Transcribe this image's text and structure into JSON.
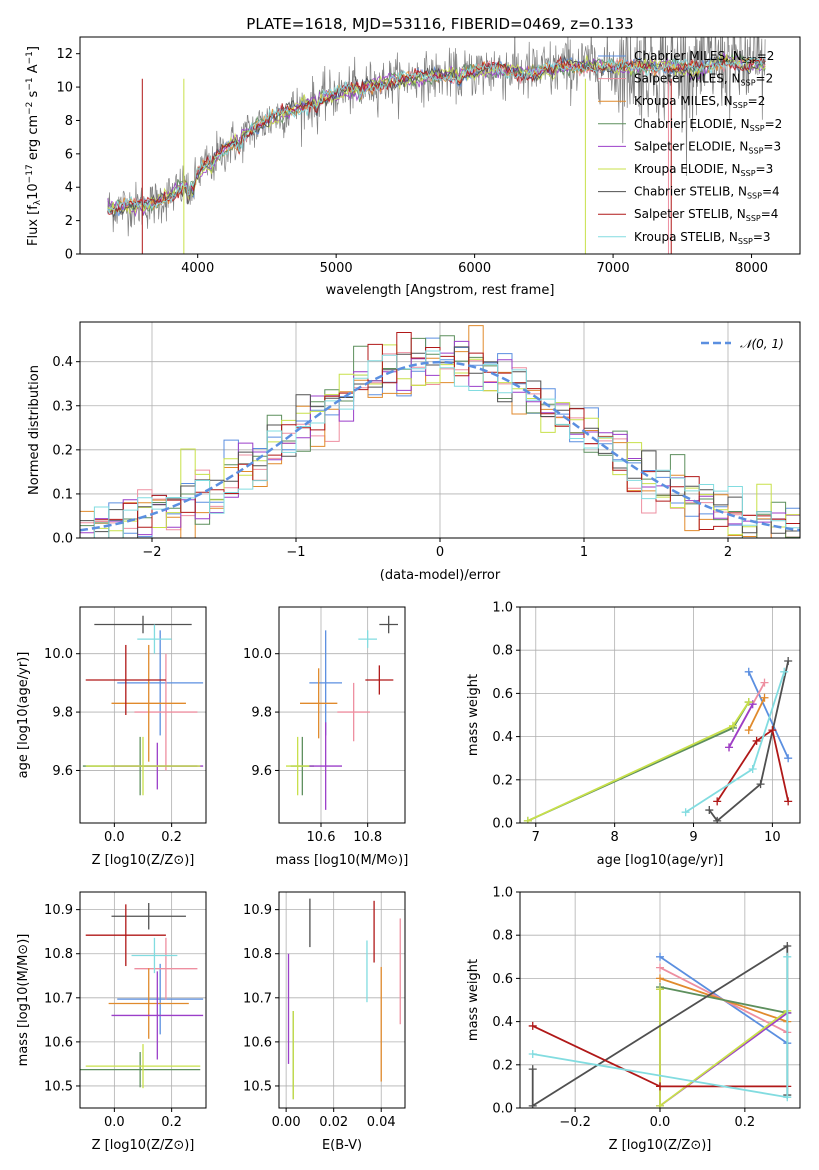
{
  "title": "PLATE=1618, MJD=53116, FIBERID=0469, z=0.133",
  "colors": {
    "chabrier_miles": "#5b8fe0",
    "salpeter_miles": "#ee8fa0",
    "kroupa_miles": "#e08a2c",
    "chabrier_elodie": "#5d8f5d",
    "salpeter_elodie": "#9b3fc9",
    "kroupa_elodie": "#c8e04a",
    "chabrier_stelib": "#505050",
    "salpeter_stelib": "#b01818",
    "kroupa_stelib": "#82dce0",
    "data": "#808080",
    "normal": "#5b8fe0"
  },
  "chart_data": [
    {
      "type": "line",
      "xlabel": "wavelength [Angstrom, rest frame]",
      "ylabel": "Flux [f_λ10^-17 erg cm^-2 s^-1 A^-1]",
      "xlim": [
        3150,
        8350
      ],
      "ylim": [
        0,
        13
      ],
      "xticks": [
        4000,
        5000,
        6000,
        7000,
        8000
      ],
      "yticks": [
        0,
        2,
        4,
        6,
        8,
        10,
        12
      ],
      "grid": false,
      "legend_position": "top-right",
      "series": [
        {
          "name": "Chabrier MILES, N_SSP=2",
          "color_key": "chabrier_miles"
        },
        {
          "name": "Salpeter MILES, N_SSP=2",
          "color_key": "salpeter_miles"
        },
        {
          "name": "Kroupa MILES, N_SSP=2",
          "color_key": "kroupa_miles"
        },
        {
          "name": "Chabrier ELODIE, N_SSP=2",
          "color_key": "chabrier_elodie"
        },
        {
          "name": "Salpeter ELODIE, N_SSP=3",
          "color_key": "salpeter_elodie"
        },
        {
          "name": "Kroupa ELODIE, N_SSP=3",
          "color_key": "kroupa_elodie"
        },
        {
          "name": "Chabrier STELIB, N_SSP=4",
          "color_key": "chabrier_stelib"
        },
        {
          "name": "Salpeter STELIB, N_SSP=4",
          "color_key": "salpeter_stelib"
        },
        {
          "name": "Kroupa STELIB, N_SSP=3",
          "color_key": "kroupa_stelib"
        }
      ],
      "continuum": {
        "x": [
          3350,
          3500,
          3650,
          3800,
          3950,
          4100,
          4250,
          4400,
          4600,
          4800,
          5000,
          5200,
          5400,
          5600,
          5800,
          6000,
          6200,
          6400,
          6600,
          6800,
          7000,
          7200,
          7400,
          7600,
          7800,
          8000,
          8100
        ],
        "y": [
          2.7,
          2.9,
          2.9,
          3.5,
          4.4,
          5.6,
          6.6,
          7.5,
          8.4,
          9.0,
          9.6,
          10.0,
          10.4,
          10.6,
          10.7,
          10.9,
          11.1,
          10.8,
          11.2,
          11.3,
          11.2,
          11.2,
          11.3,
          11.0,
          11.6,
          11.3,
          11.4
        ]
      }
    },
    {
      "type": "area",
      "xlabel": "(data-model)/error",
      "ylabel": "Normed distribution",
      "xlim": [
        -2.5,
        2.5
      ],
      "ylim": [
        0,
        0.49
      ],
      "xticks": [
        -2,
        -1,
        0,
        1,
        2
      ],
      "xtick_labels": [
        "−2",
        "−1",
        "0",
        "1",
        "2"
      ],
      "yticks": [
        0.0,
        0.1,
        0.2,
        0.3,
        0.4
      ],
      "grid": true,
      "legend_position": "top-right",
      "legend": [
        "𝒩(0, 1)"
      ],
      "normal": {
        "mean": 0,
        "sigma": 1
      }
    },
    {
      "type": "scatter",
      "xlabel": "Z [log10(Z/Z⊙)]",
      "ylabel": "age [log10(age/yr)]",
      "xlim": [
        -0.12,
        0.32
      ],
      "ylim": [
        9.42,
        10.16
      ],
      "xticks": [
        0.0,
        0.2
      ],
      "yticks": [
        9.6,
        9.8,
        10.0
      ],
      "grid": true,
      "points": [
        {
          "model": "chabrier_miles",
          "x": 0.16,
          "y": 9.9,
          "xerr": 0.15,
          "yerr": 0.18
        },
        {
          "model": "salpeter_miles",
          "x": 0.18,
          "y": 9.8,
          "xerr": 0.11,
          "yerr": 0.2
        },
        {
          "model": "kroupa_miles",
          "x": 0.12,
          "y": 9.83,
          "xerr": 0.13,
          "yerr": 0.2
        },
        {
          "model": "chabrier_elodie",
          "x": 0.09,
          "y": 9.615,
          "xerr": 0.2,
          "yerr": 0.1
        },
        {
          "model": "salpeter_elodie",
          "x": 0.15,
          "y": 9.615,
          "xerr": 0.16,
          "yerr": 0.08
        },
        {
          "model": "kroupa_elodie",
          "x": 0.1,
          "y": 9.615,
          "xerr": 0.2,
          "yerr": 0.1
        },
        {
          "model": "chabrier_stelib",
          "x": 0.1,
          "y": 10.1,
          "xerr": 0.17,
          "yerr": 0.03
        },
        {
          "model": "salpeter_stelib",
          "x": 0.04,
          "y": 9.91,
          "xerr": 0.14,
          "yerr": 0.12
        },
        {
          "model": "kroupa_stelib",
          "x": 0.14,
          "y": 10.05,
          "xerr": 0.06,
          "yerr": 0.05
        }
      ]
    },
    {
      "type": "scatter",
      "xlabel": "mass [log10(M/M⊙)]",
      "ylabel": "",
      "xlim": [
        10.42,
        10.96
      ],
      "ylim": [
        9.42,
        10.16
      ],
      "xticks": [
        10.6,
        10.8
      ],
      "yticks": [
        9.6,
        9.8,
        10.0
      ],
      "grid": true,
      "points": [
        {
          "model": "chabrier_miles",
          "x": 10.62,
          "y": 9.9,
          "xerr": 0.07,
          "yerr": 0.18
        },
        {
          "model": "salpeter_miles",
          "x": 10.74,
          "y": 9.8,
          "xerr": 0.07,
          "yerr": 0.1
        },
        {
          "model": "kroupa_miles",
          "x": 10.59,
          "y": 9.83,
          "xerr": 0.08,
          "yerr": 0.12
        },
        {
          "model": "chabrier_elodie",
          "x": 10.52,
          "y": 9.615,
          "xerr": 0.05,
          "yerr": 0.1
        },
        {
          "model": "salpeter_elodie",
          "x": 10.62,
          "y": 9.615,
          "xerr": 0.07,
          "yerr": 0.15
        },
        {
          "model": "kroupa_elodie",
          "x": 10.5,
          "y": 9.615,
          "xerr": 0.05,
          "yerr": 0.1
        },
        {
          "model": "chabrier_stelib",
          "x": 10.89,
          "y": 10.1,
          "xerr": 0.04,
          "yerr": 0.03
        },
        {
          "model": "salpeter_stelib",
          "x": 10.85,
          "y": 9.91,
          "xerr": 0.06,
          "yerr": 0.05
        },
        {
          "model": "kroupa_stelib",
          "x": 10.8,
          "y": 10.05,
          "xerr": 0.04,
          "yerr": 0.03
        }
      ]
    },
    {
      "type": "line",
      "xlabel": "age [log10(age/yr)]",
      "ylabel": "mass weight",
      "xlim": [
        6.8,
        10.35
      ],
      "ylim": [
        0,
        1
      ],
      "xticks": [
        7,
        8,
        9,
        10
      ],
      "yticks": [
        0.0,
        0.2,
        0.4,
        0.6,
        0.8,
        1.0
      ],
      "grid": true,
      "series": [
        {
          "model": "chabrier_miles",
          "x": [
            9.7,
            10.2
          ],
          "y": [
            0.7,
            0.3
          ]
        },
        {
          "model": "salpeter_miles",
          "x": [
            9.45,
            9.9
          ],
          "y": [
            0.35,
            0.65
          ]
        },
        {
          "model": "kroupa_miles",
          "x": [
            9.7,
            9.9
          ],
          "y": [
            0.43,
            0.58
          ]
        },
        {
          "model": "chabrier_elodie",
          "x": [
            6.9,
            9.5,
            9.7
          ],
          "y": [
            0.01,
            0.44,
            0.56
          ]
        },
        {
          "model": "salpeter_elodie",
          "x": [
            9.45,
            9.75
          ],
          "y": [
            0.35,
            0.55
          ]
        },
        {
          "model": "kroupa_elodie",
          "x": [
            6.9,
            9.5,
            9.7
          ],
          "y": [
            0.01,
            0.45,
            0.56
          ]
        },
        {
          "model": "chabrier_stelib",
          "x": [
            9.2,
            9.3,
            9.85,
            10.2
          ],
          "y": [
            0.06,
            0.01,
            0.18,
            0.75
          ]
        },
        {
          "model": "salpeter_stelib",
          "x": [
            9.3,
            9.8,
            10.0,
            10.2
          ],
          "y": [
            0.1,
            0.38,
            0.43,
            0.1
          ]
        },
        {
          "model": "kroupa_stelib",
          "x": [
            8.9,
            9.75,
            10.15
          ],
          "y": [
            0.05,
            0.25,
            0.7
          ]
        }
      ]
    },
    {
      "type": "scatter",
      "xlabel": "Z [log10(Z/Z⊙)]",
      "ylabel": "mass [log10(M/M⊙)]",
      "xlim": [
        -0.12,
        0.32
      ],
      "ylim": [
        10.45,
        10.94
      ],
      "xticks": [
        0.0,
        0.2
      ],
      "yticks": [
        10.5,
        10.6,
        10.7,
        10.8,
        10.9
      ],
      "grid": true,
      "points": [
        {
          "model": "chabrier_miles",
          "x": 0.16,
          "y": 10.697,
          "xerr": 0.15,
          "yerr": 0.08
        },
        {
          "model": "salpeter_miles",
          "x": 0.18,
          "y": 10.766,
          "xerr": 0.11,
          "yerr": 0.07
        },
        {
          "model": "kroupa_miles",
          "x": 0.12,
          "y": 10.687,
          "xerr": 0.14,
          "yerr": 0.08
        },
        {
          "model": "chabrier_elodie",
          "x": 0.09,
          "y": 10.537,
          "xerr": 0.21,
          "yerr": 0.04
        },
        {
          "model": "salpeter_elodie",
          "x": 0.15,
          "y": 10.66,
          "xerr": 0.16,
          "yerr": 0.1
        },
        {
          "model": "kroupa_elodie",
          "x": 0.1,
          "y": 10.545,
          "xerr": 0.2,
          "yerr": 0.05
        },
        {
          "model": "chabrier_stelib",
          "x": 0.12,
          "y": 10.885,
          "xerr": 0.13,
          "yerr": 0.03
        },
        {
          "model": "salpeter_stelib",
          "x": 0.04,
          "y": 10.842,
          "xerr": 0.14,
          "yerr": 0.07
        },
        {
          "model": "kroupa_stelib",
          "x": 0.14,
          "y": 10.796,
          "xerr": 0.08,
          "yerr": 0.04
        }
      ]
    },
    {
      "type": "scatter",
      "xlabel": "E(B-V)",
      "ylabel": "",
      "xlim": [
        -0.003,
        0.05
      ],
      "ylim": [
        10.45,
        10.94
      ],
      "xticks": [
        0.0,
        0.02,
        0.04
      ],
      "xtick_labels": [
        "0.00",
        "0.02",
        "0.04"
      ],
      "yticks": [
        10.5,
        10.6,
        10.7,
        10.8,
        10.9
      ],
      "grid": true,
      "points": [
        {
          "model": "chabrier_miles",
          "x": 0.04,
          "y": 10.7,
          "yerr": 0.0
        },
        {
          "model": "salpeter_miles",
          "x": 0.048,
          "y": 10.76,
          "yerr": 0.12
        },
        {
          "model": "kroupa_miles",
          "x": 0.04,
          "y": 10.64,
          "yerr": 0.13
        },
        {
          "model": "chabrier_elodie",
          "x": 0.003,
          "y": 10.57,
          "yerr": 0.1
        },
        {
          "model": "salpeter_elodie",
          "x": 0.001,
          "y": 10.675,
          "yerr": 0.125
        },
        {
          "model": "kroupa_elodie",
          "x": 0.003,
          "y": 10.57,
          "yerr": 0.1
        },
        {
          "model": "chabrier_stelib",
          "x": 0.01,
          "y": 10.87,
          "yerr": 0.055
        },
        {
          "model": "salpeter_stelib",
          "x": 0.037,
          "y": 10.85,
          "yerr": 0.07
        },
        {
          "model": "kroupa_stelib",
          "x": 0.034,
          "y": 10.76,
          "yerr": 0.07
        }
      ]
    },
    {
      "type": "line",
      "xlabel": "Z [log10(Z/Z⊙)]",
      "ylabel": "mass weight",
      "xlim": [
        -0.33,
        0.33
      ],
      "ylim": [
        0,
        1
      ],
      "xticks": [
        -0.2,
        0.0,
        0.2
      ],
      "xtick_labels": [
        "−0.2",
        "0.0",
        "0.2"
      ],
      "yticks": [
        0.0,
        0.2,
        0.4,
        0.6,
        0.8,
        1.0
      ],
      "grid": true,
      "series": [
        {
          "model": "chabrier_miles",
          "x": [
            0.0,
            0.3
          ],
          "y": [
            0.7,
            0.3
          ]
        },
        {
          "model": "salpeter_miles",
          "x": [
            0.0,
            0.3
          ],
          "y": [
            0.65,
            0.35
          ]
        },
        {
          "model": "kroupa_miles",
          "x": [
            0.0,
            0.3
          ],
          "y": [
            0.6,
            0.4
          ]
        },
        {
          "model": "chabrier_elodie",
          "x": [
            0.0,
            0.3
          ],
          "y": [
            0.56,
            0.44
          ]
        },
        {
          "model": "salpeter_elodie",
          "x": [
            0.0,
            0.0,
            0.3
          ],
          "y": [
            0.55,
            0.01,
            0.44
          ]
        },
        {
          "model": "kroupa_elodie",
          "x": [
            0.0,
            0.0,
            0.3
          ],
          "y": [
            0.55,
            0.01,
            0.45
          ]
        },
        {
          "model": "chabrier_stelib",
          "x": [
            -0.3,
            -0.3,
            0.3,
            0.3
          ],
          "y": [
            0.18,
            0.01,
            0.75,
            0.06
          ]
        },
        {
          "model": "salpeter_stelib",
          "x": [
            -0.3,
            0.0,
            0.3
          ],
          "y": [
            0.38,
            0.1,
            0.1
          ]
        },
        {
          "model": "kroupa_stelib",
          "x": [
            -0.3,
            0.3,
            0.3
          ],
          "y": [
            0.25,
            0.05,
            0.7
          ]
        }
      ]
    }
  ]
}
